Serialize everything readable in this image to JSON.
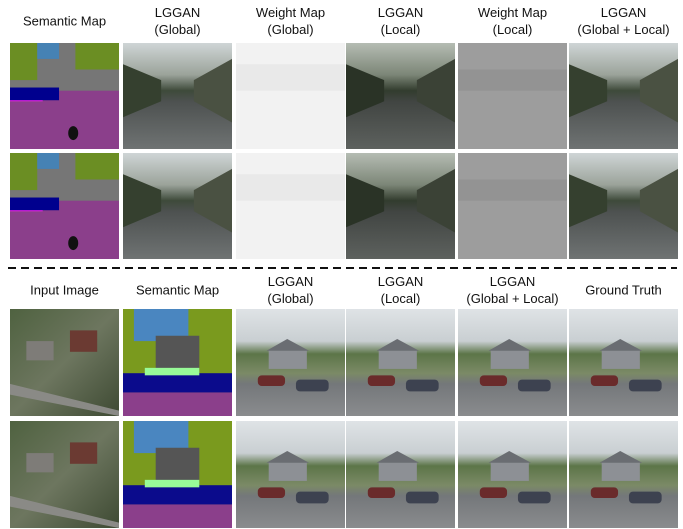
{
  "top": {
    "headers": [
      [
        "Semantic Map"
      ],
      [
        "LGGAN",
        "(Global)"
      ],
      [
        "Weight Map",
        "(Global)"
      ],
      [
        "LGGAN",
        "(Local)"
      ],
      [
        "Weight Map",
        "(Local)"
      ],
      [
        "LGGAN",
        "(Global + Local)"
      ]
    ]
  },
  "bottom": {
    "headers": [
      [
        "Input Image"
      ],
      [
        "Semantic Map"
      ],
      [
        "LGGAN",
        "(Global)"
      ],
      [
        "LGGAN",
        "(Local)"
      ],
      [
        "LGGAN",
        "(Global + Local)"
      ],
      [
        "Ground Truth"
      ]
    ]
  }
}
